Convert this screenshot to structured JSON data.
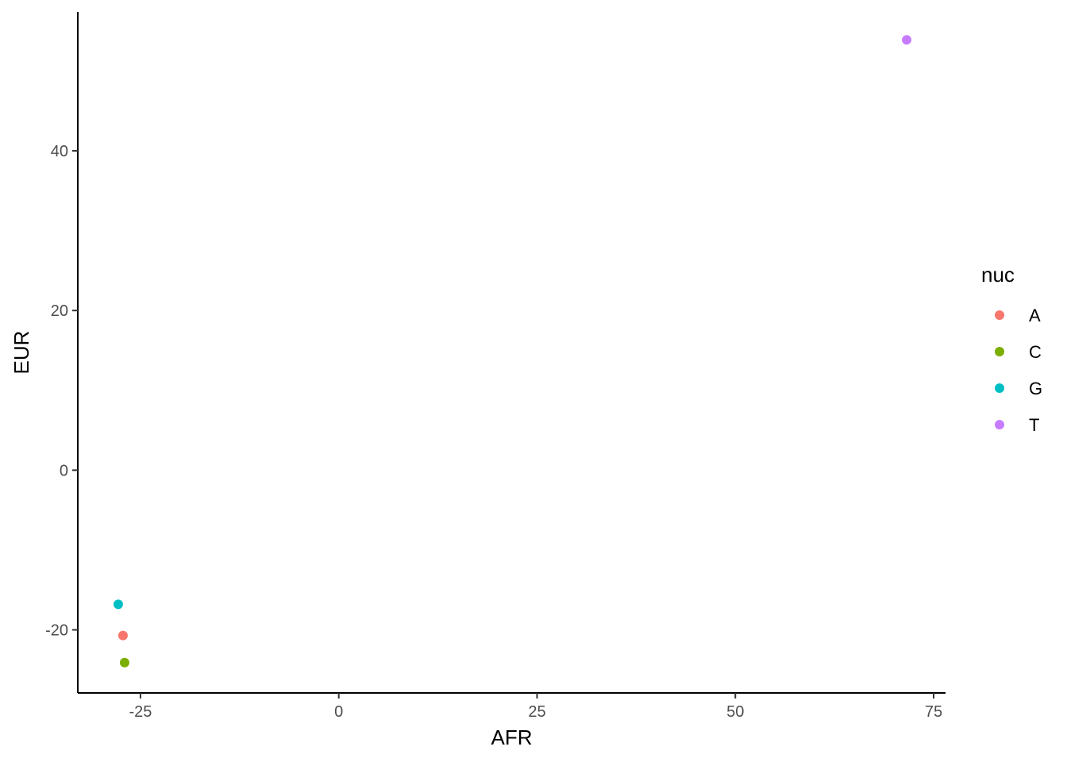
{
  "chart_data": {
    "type": "scatter",
    "xlabel": "AFR",
    "ylabel": "EUR",
    "xlim": [
      -32.9,
      76.5
    ],
    "ylim": [
      -27.9,
      57.4
    ],
    "x_ticks": [
      -25,
      0,
      25,
      50,
      75
    ],
    "x_tick_labels": [
      "-25",
      "0",
      "25",
      "50",
      "75"
    ],
    "y_ticks": [
      -20,
      0,
      20,
      40
    ],
    "y_tick_labels": [
      "-20",
      "0",
      "20",
      "40"
    ],
    "grid": false,
    "legend": {
      "title": "nuc",
      "placement": "right"
    },
    "series": [
      {
        "name": "A",
        "color": "#F8766D",
        "x": [
          -27.2
        ],
        "y": [
          -20.7
        ]
      },
      {
        "name": "C",
        "color": "#7CAE00",
        "x": [
          -27.0
        ],
        "y": [
          -24.1
        ]
      },
      {
        "name": "G",
        "color": "#00BFC4",
        "x": [
          -27.8
        ],
        "y": [
          -16.8
        ]
      },
      {
        "name": "T",
        "color": "#C77CFF",
        "x": [
          71.6
        ],
        "y": [
          53.9
        ]
      }
    ]
  }
}
